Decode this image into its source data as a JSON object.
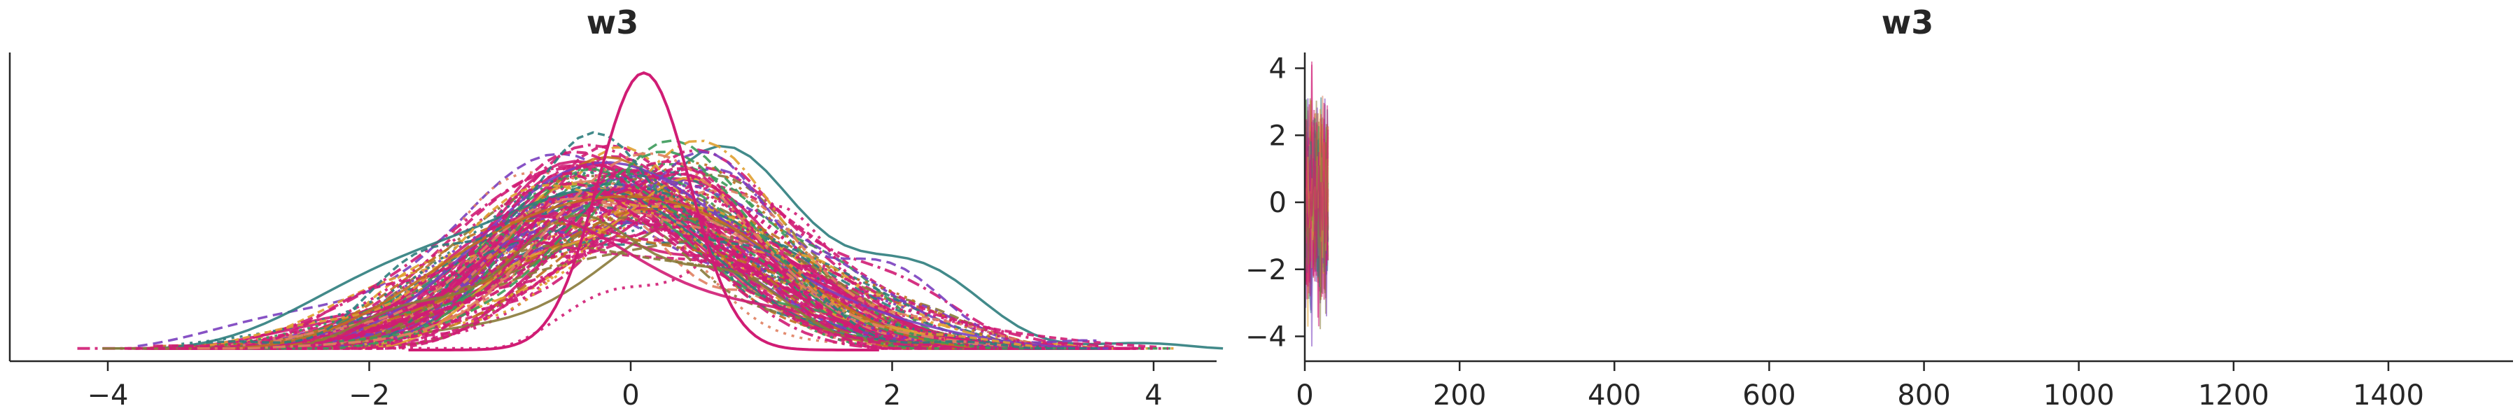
{
  "chart_data": [
    {
      "type": "line",
      "panel": "kde",
      "title": "w3",
      "xlabel": "",
      "ylabel": "",
      "xlim": [
        -4.5,
        4.5
      ],
      "ylim": [
        0,
        1.0
      ],
      "xticks": [
        -4,
        -2,
        0,
        2,
        4
      ],
      "xtick_labels": [
        "−4",
        "−2",
        "0",
        "2",
        "4"
      ],
      "y_axis_ticks": false,
      "grid": false,
      "legend": "none",
      "description_of_marks": "many overlapping kernel density estimates of posterior chains, roughly normal around 0 with sd about 1; peak densities vary between 0.45 and 0.9",
      "series_summary": {
        "center_mean": 0.0,
        "center_spread": 0.25,
        "sd_min": 0.8,
        "sd_max": 1.2,
        "peak_density_typical": 0.5,
        "peak_density_max": 0.9,
        "n_chains_drawn": 120
      },
      "highlight_chain": {
        "mu": 0.1,
        "sd": 0.35,
        "peak": 0.9
      }
    },
    {
      "type": "line",
      "panel": "trace",
      "title": "w3",
      "xlabel": "",
      "ylabel": "",
      "xlim": [
        0,
        1570
      ],
      "ylim": [
        -4.8,
        4.5
      ],
      "xticks": [
        0,
        200,
        400,
        600,
        800,
        1000,
        1200,
        1400
      ],
      "xtick_labels": [
        "0",
        "200",
        "400",
        "600",
        "800",
        "1000",
        "1200",
        "1400"
      ],
      "yticks": [
        4,
        2,
        0,
        -2,
        -4
      ],
      "ytick_labels": [
        "4",
        "2",
        "0",
        "−2",
        "−4"
      ],
      "grid": false,
      "legend": "none",
      "description_of_marks": "trace samples of many chains, all compressed into draws 0 to 30, spanning about -4.3 to 4.2",
      "draw_range": [
        0,
        30
      ],
      "value_range": [
        -4.3,
        4.2
      ]
    }
  ],
  "colors": {
    "palette": [
      "#1f8f8f",
      "#e0a030",
      "#8a7a3a",
      "#6b6b6b",
      "#7a3fbf",
      "#d01c74",
      "#5aa0d0",
      "#c07020",
      "#3c9a5a",
      "#888888",
      "#e08060",
      "#2e7d7d"
    ],
    "dominant": "#d01c74",
    "secondary": "#7a3fbf",
    "axis": "#262626"
  }
}
